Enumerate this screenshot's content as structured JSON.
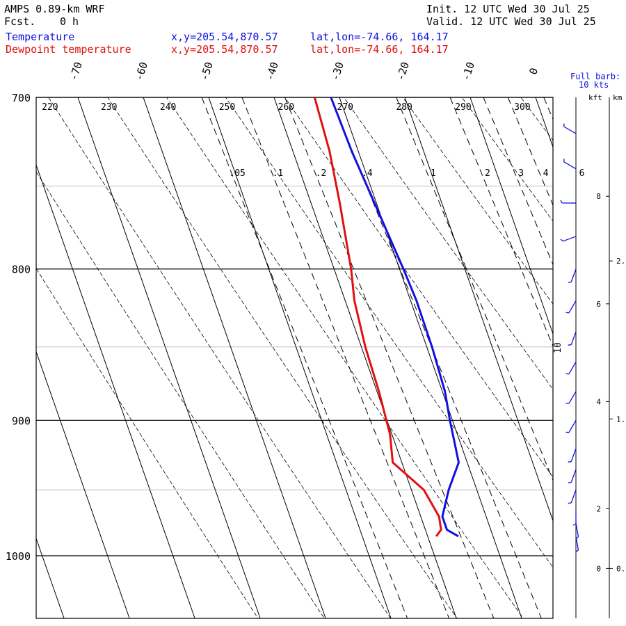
{
  "header": {
    "model": "AMPS 0.89-km WRF",
    "fcst_label": "Fcst.",
    "fcst_value": "0 h",
    "init": "Init. 12 UTC Wed 30 Jul 25",
    "valid": "Valid. 12 UTC Wed 30 Jul 25",
    "temp_label": "Temperature",
    "temp_xy": "x,y=205.54,870.57",
    "temp_latlon": "lat,lon=-74.66, 164.17",
    "dew_label": "Dewpoint temperature",
    "dew_xy": "x,y=205.54,870.57",
    "dew_latlon": "lat,lon=-74.66, 164.17",
    "barb_note_1": "Full barb:",
    "barb_note_2": "10 kts",
    "kft_label": "kft",
    "km_label": "km"
  },
  "colors": {
    "temperature": "#1010e0",
    "dewpoint": "#e01010",
    "barbs": "#1010e0",
    "grid": "#000000"
  },
  "chart_data": {
    "type": "line",
    "subtype": "skew-T log-p sounding",
    "pressure_axis": {
      "range": [
        1050,
        700
      ],
      "scale": "log",
      "tick_labels": [
        "700",
        "800",
        "900",
        "1000"
      ]
    },
    "isotherm_labels": [
      "-70",
      "-60",
      "-50",
      "-40",
      "-30",
      "-20",
      "-10",
      "0"
    ],
    "dry_adiabat_labels": [
      "220",
      "230",
      "240",
      "250",
      "260",
      "270",
      "280",
      "290",
      "300"
    ],
    "mixing_ratio_labels": [
      ".05",
      ".1",
      ".2",
      ".4",
      "1",
      "2",
      "3",
      "4",
      "6"
    ],
    "wind_speed_label": "10",
    "height_axis": {
      "kft_ticks": [
        "8",
        "6",
        "4",
        "2",
        "0"
      ],
      "km_ticks": [
        "2.",
        "1.",
        "0."
      ]
    },
    "series": [
      {
        "name": "Temperature",
        "color": "#1010e0",
        "points": [
          {
            "p": 985,
            "t": -35.3
          },
          {
            "p": 980,
            "t": -36.7
          },
          {
            "p": 970,
            "t": -36.7
          },
          {
            "p": 950,
            "t": -34.3
          },
          {
            "p": 930,
            "t": -31.3
          },
          {
            "p": 900,
            "t": -30.4
          },
          {
            "p": 880,
            "t": -29.6
          },
          {
            "p": 850,
            "t": -29.2
          },
          {
            "p": 820,
            "t": -29.1
          },
          {
            "p": 800,
            "t": -29.4
          },
          {
            "p": 760,
            "t": -30.3
          },
          {
            "p": 730,
            "t": -31.0
          },
          {
            "p": 700,
            "t": -31.3
          }
        ]
      },
      {
        "name": "Dewpoint temperature",
        "color": "#e01010",
        "points": [
          {
            "p": 985,
            "t": -38.7
          },
          {
            "p": 980,
            "t": -37.6
          },
          {
            "p": 970,
            "t": -37.2
          },
          {
            "p": 950,
            "t": -38.1
          },
          {
            "p": 930,
            "t": -41.4
          },
          {
            "p": 910,
            "t": -40.3
          },
          {
            "p": 880,
            "t": -39.7
          },
          {
            "p": 850,
            "t": -39.4
          },
          {
            "p": 820,
            "t": -38.6
          },
          {
            "p": 800,
            "t": -37.4
          },
          {
            "p": 760,
            "t": -35.6
          },
          {
            "p": 730,
            "t": -34.4
          },
          {
            "p": 700,
            "t": -33.8
          }
        ]
      }
    ],
    "wind_barbs": [
      {
        "p": 985,
        "dir": 170,
        "spd": 5
      },
      {
        "p": 975,
        "dir": 170,
        "spd": 5
      },
      {
        "p": 965,
        "dir": 180,
        "spd": 5
      },
      {
        "p": 950,
        "dir": 200,
        "spd": 5
      },
      {
        "p": 935,
        "dir": 200,
        "spd": 5
      },
      {
        "p": 920,
        "dir": 200,
        "spd": 5
      },
      {
        "p": 900,
        "dir": 210,
        "spd": 5
      },
      {
        "p": 880,
        "dir": 210,
        "spd": 5
      },
      {
        "p": 860,
        "dir": 210,
        "spd": 5
      },
      {
        "p": 840,
        "dir": 200,
        "spd": 5
      },
      {
        "p": 820,
        "dir": 210,
        "spd": 5
      },
      {
        "p": 800,
        "dir": 200,
        "spd": 5
      },
      {
        "p": 780,
        "dir": 250,
        "spd": 5
      },
      {
        "p": 760,
        "dir": 270,
        "spd": 5
      },
      {
        "p": 740,
        "dir": 300,
        "spd": 5
      },
      {
        "p": 720,
        "dir": 300,
        "spd": 5
      }
    ]
  }
}
